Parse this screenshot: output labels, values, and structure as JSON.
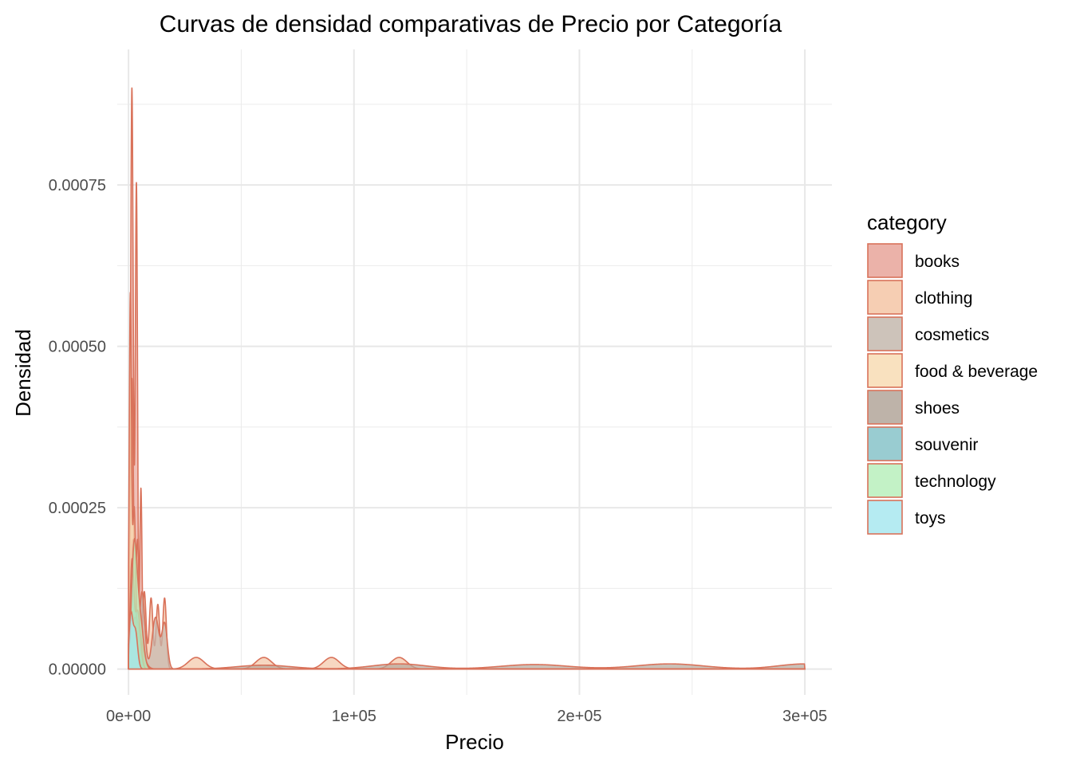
{
  "chart_data": {
    "type": "area",
    "subtype": "density",
    "title": "Curvas de densidad comparativas de Precio por Categoría",
    "xlabel": "Precio",
    "ylabel": "Densidad",
    "xlim": [
      -5000,
      312000
    ],
    "ylim": [
      -4e-05,
      0.00096
    ],
    "x_ticks": [
      {
        "value": 0,
        "label": "0e+00"
      },
      {
        "value": 100000,
        "label": "1e+05"
      },
      {
        "value": 200000,
        "label": "2e+05"
      },
      {
        "value": 300000,
        "label": "3e+05"
      }
    ],
    "y_ticks": [
      {
        "value": 0,
        "label": "0.00000"
      },
      {
        "value": 0.00025,
        "label": "0.00025"
      },
      {
        "value": 0.0005,
        "label": "0.00050"
      },
      {
        "value": 0.00075,
        "label": "0.00075"
      }
    ],
    "grid": true,
    "legend": {
      "title": "category",
      "position": "right"
    },
    "stroke_color": "#d9725a",
    "series": [
      {
        "name": "books",
        "color": "#e8a59a",
        "peaks": [
          [
            1500,
            0.0009,
            600
          ],
          [
            3500,
            0.00075,
            500
          ],
          [
            5500,
            0.00028,
            500
          ]
        ]
      },
      {
        "name": "clothing",
        "color": "#f4c6a6",
        "peaks": [
          [
            1500,
            0.00045,
            700
          ],
          [
            4000,
            0.0002,
            700
          ],
          [
            7000,
            0.00012,
            800
          ],
          [
            10000,
            0.00011,
            800
          ],
          [
            13000,
            0.0001,
            800
          ],
          [
            16000,
            0.00011,
            800
          ],
          [
            30000,
            1.8e-05,
            3500
          ],
          [
            60000,
            1.8e-05,
            3500
          ],
          [
            90000,
            1.8e-05,
            3500
          ],
          [
            120000,
            1.8e-05,
            3500
          ]
        ]
      },
      {
        "name": "cosmetics",
        "color": "#c4b8ae",
        "peaks": [
          [
            2000,
            0.0002,
            900
          ],
          [
            6000,
            0.00012,
            1200
          ],
          [
            12000,
            8e-05,
            1500
          ],
          [
            16000,
            7e-05,
            1200
          ]
        ]
      },
      {
        "name": "food & beverage",
        "color": "#f8dcb4",
        "peaks": [
          [
            800,
            0.00057,
            500
          ],
          [
            2500,
            0.00025,
            700
          ]
        ]
      },
      {
        "name": "shoes",
        "color": "#b3a69a",
        "peaks": [
          [
            3000,
            8e-05,
            2500
          ],
          [
            60000,
            6e-06,
            12000
          ],
          [
            120000,
            8e-06,
            12000
          ],
          [
            180000,
            7e-06,
            15000
          ],
          [
            240000,
            8e-06,
            15000
          ],
          [
            300000,
            8e-06,
            12000
          ]
        ]
      },
      {
        "name": "souvenir",
        "color": "#87c3c9",
        "peaks": [
          [
            1500,
            0.00016,
            800
          ],
          [
            4000,
            9e-05,
            1200
          ]
        ]
      },
      {
        "name": "technology",
        "color": "#b8f0bc",
        "peaks": [
          [
            2500,
            0.00018,
            1200
          ],
          [
            5000,
            8e-05,
            1500
          ]
        ]
      },
      {
        "name": "toys",
        "color": "#a8e8f0",
        "peaks": [
          [
            1000,
            8e-05,
            800
          ],
          [
            3000,
            6e-05,
            1000
          ]
        ]
      }
    ]
  }
}
